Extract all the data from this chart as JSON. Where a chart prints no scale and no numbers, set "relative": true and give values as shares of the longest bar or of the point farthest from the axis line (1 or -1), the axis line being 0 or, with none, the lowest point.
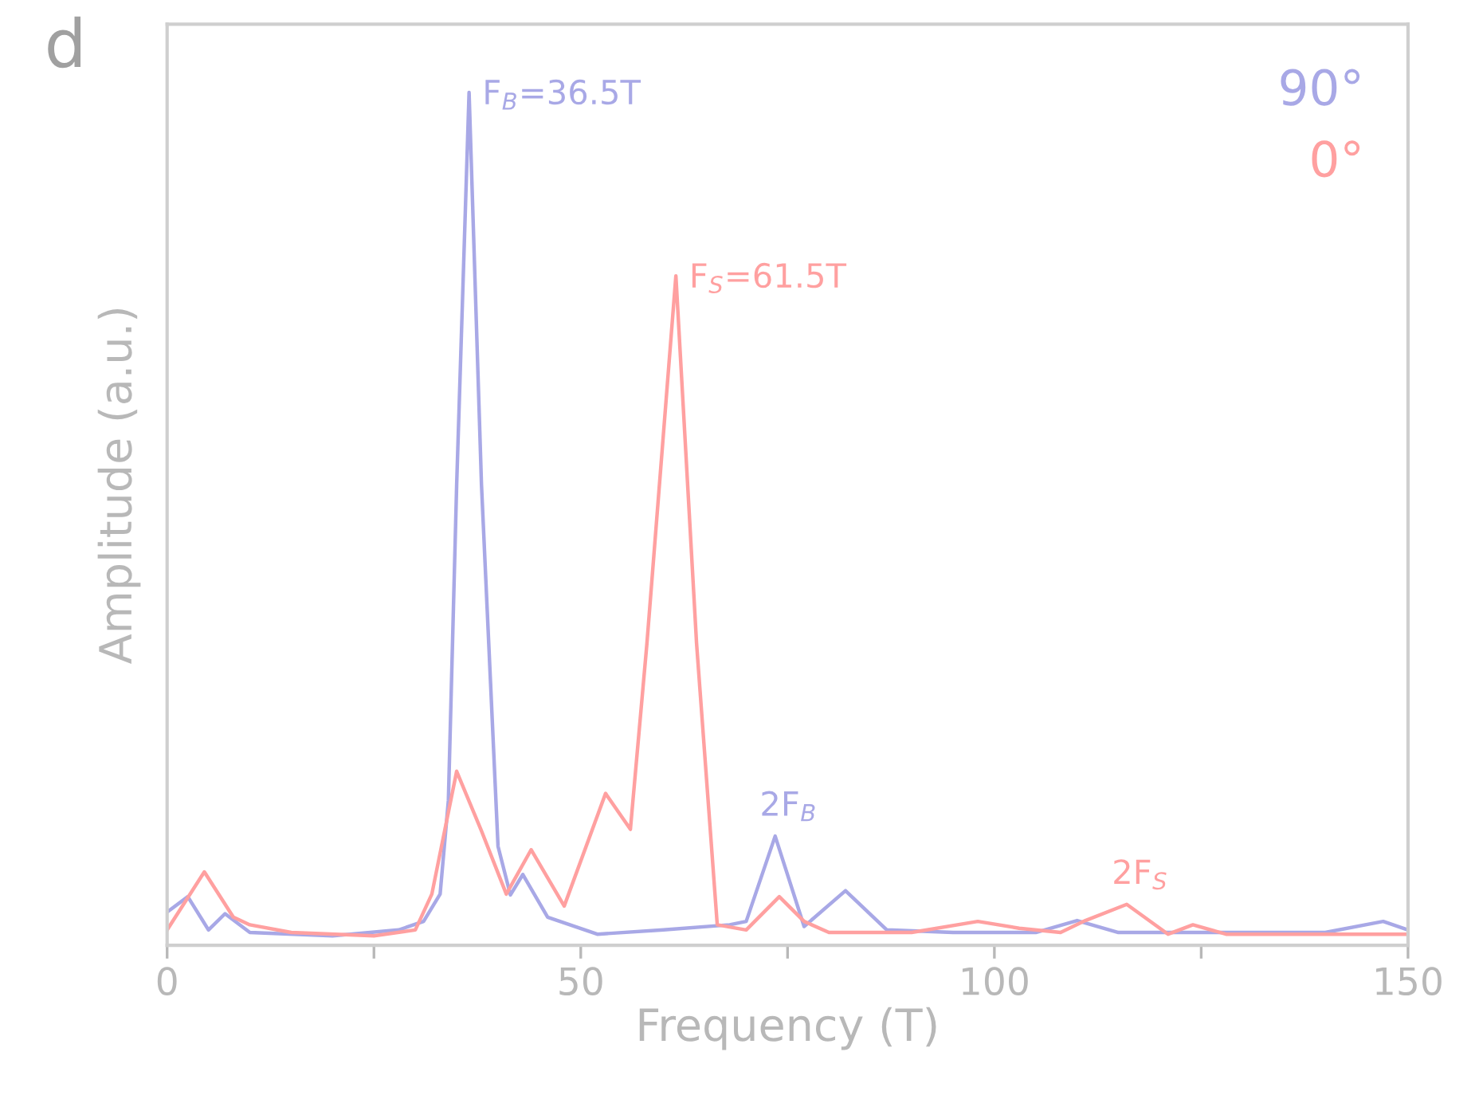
{
  "chart_data": {
    "type": "line",
    "relative": true,
    "xlabel": "Frequency (T)",
    "ylabel": "Amplitude (a.u.)",
    "xlim": [
      0,
      150
    ],
    "xticks": [
      0,
      {
        "value": 25,
        "label": null
      },
      50,
      {
        "value": 75,
        "label": null
      },
      100,
      {
        "value": 125,
        "label": null
      },
      150
    ],
    "tick_labels": "x",
    "grid": false,
    "legend": "top right",
    "marker": "none",
    "line_style": "solid",
    "series": [
      {
        "name": "90°",
        "color": "#a8a8e6",
        "x": [
          0,
          2.5,
          5,
          7,
          10,
          20,
          28,
          31,
          33,
          34,
          35,
          36.5,
          38,
          40,
          41.5,
          43,
          46,
          52,
          60,
          68,
          70,
          73.5,
          77,
          82,
          87,
          95,
          105,
          110,
          115,
          140,
          147,
          150
        ],
        "values": [
          0.039,
          0.057,
          0.018,
          0.037,
          0.015,
          0.011,
          0.018,
          0.028,
          0.06,
          0.17,
          0.54,
          1.0,
          0.54,
          0.116,
          0.059,
          0.083,
          0.033,
          0.013,
          0.018,
          0.024,
          0.028,
          0.128,
          0.022,
          0.064,
          0.018,
          0.015,
          0.015,
          0.029,
          0.015,
          0.015,
          0.028,
          0.018
        ]
      },
      {
        "name": "0°",
        "color": "#ffa0a0",
        "x": [
          0,
          4.5,
          8,
          10,
          15,
          25,
          30,
          32,
          35,
          38,
          41,
          44,
          48,
          53,
          56,
          58,
          61.5,
          64,
          66.5,
          70,
          74,
          77,
          80,
          90,
          98,
          103,
          108,
          111,
          116,
          121,
          124,
          128,
          150
        ],
        "values": [
          0.018,
          0.086,
          0.033,
          0.024,
          0.015,
          0.011,
          0.018,
          0.06,
          0.204,
          0.134,
          0.06,
          0.112,
          0.046,
          0.178,
          0.136,
          0.354,
          0.785,
          0.354,
          0.024,
          0.018,
          0.057,
          0.028,
          0.015,
          0.015,
          0.028,
          0.02,
          0.015,
          0.029,
          0.048,
          0.013,
          0.024,
          0.013,
          0.013
        ]
      }
    ],
    "annotations": [
      "d",
      {
        "text": "F$_{B}$=36.5T",
        "x": 36.5,
        "y": 1.0
      },
      {
        "text": "F$_{S}$=61.5T",
        "x": 61.5,
        "y": 0.785
      },
      {
        "text": "2F$_{B}$",
        "x": 73.5,
        "y": 0.128
      },
      {
        "text": "2F$_{S}$",
        "x": 116,
        "y": 0.048
      }
    ]
  }
}
